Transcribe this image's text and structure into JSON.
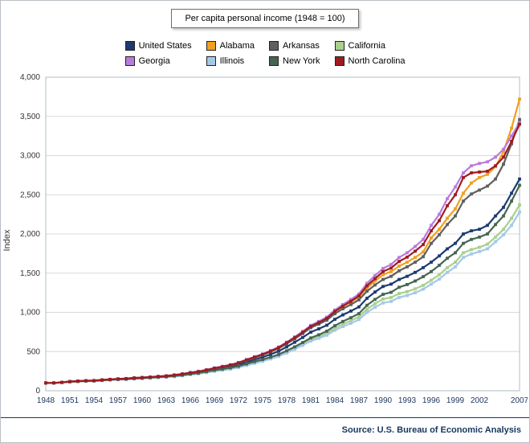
{
  "chart": {
    "title": "Per capita personal income (1948 = 100)",
    "ylabel": "Index",
    "source": "Source: U.S. Bureau of Economic Analysis"
  },
  "chart_data": {
    "type": "line",
    "title": "Per capita personal income (1948 = 100)",
    "xlabel": "",
    "ylabel": "Index",
    "ylim": [
      0,
      4000
    ],
    "y_ticks": [
      0,
      500,
      1000,
      1500,
      2000,
      2500,
      3000,
      3500,
      4000
    ],
    "x": [
      1948,
      1949,
      1950,
      1951,
      1952,
      1953,
      1954,
      1955,
      1956,
      1957,
      1958,
      1959,
      1960,
      1961,
      1962,
      1963,
      1964,
      1965,
      1966,
      1967,
      1968,
      1969,
      1970,
      1971,
      1972,
      1973,
      1974,
      1975,
      1976,
      1977,
      1978,
      1979,
      1980,
      1981,
      1982,
      1983,
      1984,
      1985,
      1986,
      1987,
      1988,
      1989,
      1990,
      1991,
      1992,
      1993,
      1994,
      1995,
      1996,
      1997,
      1998,
      1999,
      2000,
      2001,
      2002,
      2003,
      2004,
      2005,
      2006,
      2007
    ],
    "x_tick_labels": [
      "1948",
      "1951",
      "1954",
      "1957",
      "1960",
      "1963",
      "1966",
      "1969",
      "1972",
      "1975",
      "1978",
      "1981",
      "1984",
      "1987",
      "1990",
      "1993",
      "1996",
      "1999",
      "2002",
      "2007"
    ],
    "legend_position": "top",
    "grid": "horizontal",
    "source": "Source: U.S. Bureau of Economic Analysis",
    "series": [
      {
        "name": "United States",
        "color": "#1b3a70",
        "values": [
          100,
          99,
          107,
          117,
          122,
          127,
          128,
          136,
          143,
          149,
          152,
          160,
          164,
          169,
          177,
          183,
          193,
          205,
          221,
          233,
          252,
          272,
          288,
          306,
          331,
          365,
          397,
          428,
          465,
          505,
          560,
          618,
          680,
          748,
          790,
          836,
          912,
          968,
          1016,
          1070,
          1180,
          1260,
          1330,
          1360,
          1420,
          1460,
          1510,
          1570,
          1640,
          1720,
          1810,
          1880,
          2000,
          2040,
          2060,
          2110,
          2230,
          2340,
          2520,
          2700
        ]
      },
      {
        "name": "Alabama",
        "color": "#efa01e",
        "values": [
          100,
          100,
          108,
          118,
          124,
          129,
          130,
          138,
          146,
          152,
          156,
          164,
          169,
          174,
          183,
          190,
          201,
          214,
          231,
          245,
          266,
          288,
          308,
          329,
          357,
          395,
          430,
          466,
          508,
          553,
          614,
          679,
          748,
          824,
          872,
          925,
          1010,
          1075,
          1130,
          1192,
          1310,
          1400,
          1480,
          1520,
          1590,
          1640,
          1700,
          1770,
          1950,
          2060,
          2200,
          2320,
          2520,
          2650,
          2720,
          2760,
          2860,
          3050,
          3350,
          3720
        ]
      },
      {
        "name": "Arkansas",
        "color": "#5f5f5f",
        "values": [
          100,
          99,
          106,
          116,
          121,
          126,
          127,
          135,
          142,
          148,
          152,
          160,
          164,
          170,
          178,
          185,
          196,
          209,
          226,
          240,
          260,
          281,
          300,
          321,
          349,
          386,
          421,
          456,
          497,
          541,
          600,
          663,
          730,
          804,
          850,
          901,
          983,
          1046,
          1100,
          1160,
          1270,
          1350,
          1420,
          1460,
          1530,
          1580,
          1640,
          1710,
          1880,
          1990,
          2120,
          2230,
          2420,
          2510,
          2560,
          2610,
          2700,
          2890,
          3150,
          3460
        ]
      },
      {
        "name": "California",
        "color": "#a9d08e",
        "values": [
          100,
          99,
          105,
          113,
          118,
          122,
          124,
          131,
          137,
          143,
          146,
          153,
          157,
          162,
          169,
          175,
          184,
          194,
          208,
          219,
          236,
          253,
          267,
          282,
          303,
          331,
          358,
          385,
          416,
          449,
          494,
          543,
          596,
          652,
          690,
          732,
          798,
          849,
          894,
          943,
          1040,
          1110,
          1170,
          1190,
          1240,
          1265,
          1300,
          1345,
          1410,
          1480,
          1570,
          1640,
          1760,
          1800,
          1830,
          1870,
          1960,
          2060,
          2200,
          2370
        ]
      },
      {
        "name": "Georgia",
        "color": "#b87bdc",
        "values": [
          100,
          100,
          108,
          118,
          124,
          129,
          130,
          139,
          146,
          152,
          156,
          165,
          169,
          175,
          184,
          191,
          202,
          215,
          233,
          247,
          268,
          291,
          311,
          332,
          360,
          398,
          433,
          469,
          512,
          558,
          620,
          687,
          757,
          834,
          884,
          940,
          1030,
          1100,
          1165,
          1235,
          1370,
          1470,
          1560,
          1610,
          1700,
          1760,
          1840,
          1930,
          2110,
          2250,
          2450,
          2600,
          2780,
          2870,
          2900,
          2920,
          2980,
          3080,
          3250,
          3420
        ]
      },
      {
        "name": "Illinois",
        "color": "#a6c8e8",
        "values": [
          100,
          99,
          105,
          112,
          117,
          121,
          122,
          129,
          135,
          141,
          144,
          151,
          155,
          160,
          167,
          172,
          181,
          191,
          204,
          215,
          231,
          248,
          262,
          276,
          296,
          324,
          350,
          376,
          406,
          438,
          482,
          529,
          580,
          634,
          670,
          709,
          772,
          820,
          862,
          908,
          1000,
          1065,
          1120,
          1140,
          1190,
          1215,
          1250,
          1295,
          1360,
          1425,
          1510,
          1580,
          1700,
          1745,
          1775,
          1810,
          1900,
          1990,
          2110,
          2280
        ]
      },
      {
        "name": "New York",
        "color": "#44664f",
        "values": [
          100,
          100,
          106,
          114,
          119,
          124,
          126,
          133,
          140,
          146,
          149,
          156,
          161,
          167,
          174,
          180,
          189,
          200,
          214,
          226,
          244,
          262,
          277,
          293,
          314,
          343,
          371,
          398,
          429,
          463,
          510,
          560,
          615,
          674,
          714,
          760,
          830,
          884,
          932,
          985,
          1090,
          1165,
          1230,
          1255,
          1320,
          1355,
          1400,
          1455,
          1520,
          1600,
          1690,
          1760,
          1880,
          1930,
          1960,
          2000,
          2120,
          2230,
          2420,
          2620
        ]
      },
      {
        "name": "North Carolina",
        "color": "#9e1b20",
        "values": [
          100,
          99,
          107,
          118,
          123,
          128,
          129,
          138,
          145,
          151,
          155,
          163,
          168,
          174,
          182,
          189,
          200,
          213,
          230,
          244,
          265,
          287,
          307,
          328,
          356,
          394,
          429,
          464,
          506,
          551,
          612,
          677,
          746,
          822,
          870,
          924,
          1012,
          1080,
          1142,
          1210,
          1340,
          1430,
          1520,
          1565,
          1650,
          1705,
          1780,
          1865,
          2040,
          2170,
          2360,
          2500,
          2720,
          2780,
          2790,
          2800,
          2870,
          2980,
          3180,
          3400
        ]
      }
    ]
  }
}
